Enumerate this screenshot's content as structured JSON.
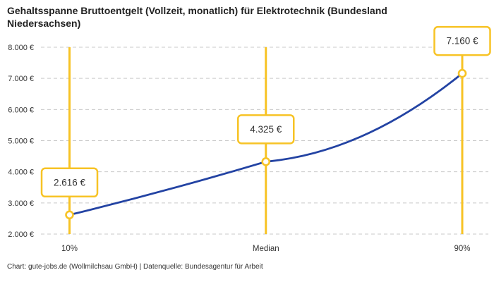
{
  "title": "Gehaltsspanne Bruttoentgelt (Vollzeit, monatlich) für Elektrotechnik (Bundesland Niedersachsen)",
  "footer": "Chart: gute-jobs.de (Wollmilchsau GmbH) | Datenquelle: Bundesagentur für Arbeit",
  "chart_data": {
    "type": "line",
    "title": "Gehaltsspanne Bruttoentgelt (Vollzeit, monatlich) für Elektrotechnik (Bundesland Niedersachsen)",
    "categories": [
      "10%",
      "Median",
      "90%"
    ],
    "values": [
      2616,
      4325,
      7160
    ],
    "value_labels": [
      "2.616 €",
      "4.325 €",
      "7.160 €"
    ],
    "y_ticks": [
      2000,
      3000,
      4000,
      5000,
      6000,
      7000,
      8000
    ],
    "y_tick_labels": [
      "2.000 €",
      "3.000 €",
      "4.000 €",
      "5.000 €",
      "6.000 €",
      "7.000 €",
      "8.000 €"
    ],
    "ylim": [
      2000,
      8000
    ],
    "xlabel": "",
    "ylabel": "",
    "grid": "horizontal-dashed",
    "legend": "none",
    "annotations": "value labels shown in boxes above each data point on vertical marker lines",
    "source_note": "Chart: gute-jobs.de (Wollmilchsau GmbH) | Datenquelle: Bundesagentur für Arbeit",
    "colors": {
      "line": "#2343A3",
      "accent": "#F7C325",
      "grid": "#C9C9C9",
      "text": "#333333",
      "background": "#FFFFFF"
    }
  }
}
